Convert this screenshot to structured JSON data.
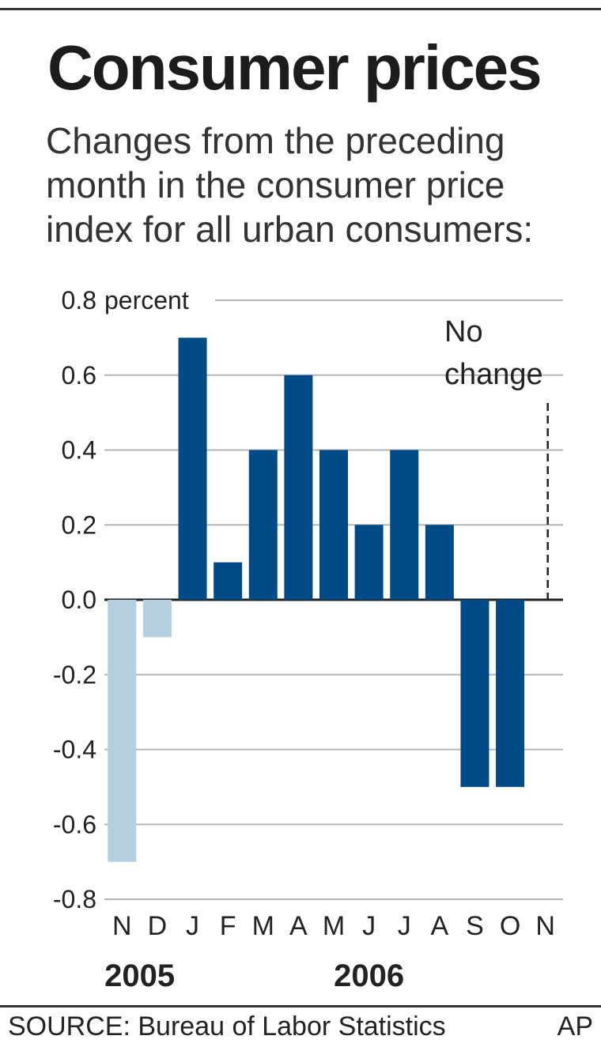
{
  "title": "Consumer prices",
  "subtitle_lines": [
    "Changes from the preceding",
    "month in the consumer price",
    "index for all urban consumers:"
  ],
  "chart_data": {
    "type": "bar",
    "categories": [
      "N",
      "D",
      "J",
      "F",
      "M",
      "A",
      "M",
      "J",
      "J",
      "A",
      "S",
      "O",
      "N"
    ],
    "years": [
      "2005",
      "2005",
      "2006",
      "2006",
      "2006",
      "2006",
      "2006",
      "2006",
      "2006",
      "2006",
      "2006",
      "2006",
      "2006"
    ],
    "values": [
      -0.7,
      -0.1,
      0.7,
      0.1,
      0.4,
      0.6,
      0.4,
      0.2,
      0.4,
      0.2,
      -0.5,
      -0.5,
      0.0
    ],
    "ylim": [
      -0.8,
      0.8
    ],
    "yticks": [
      0.8,
      0.6,
      0.4,
      0.2,
      0.0,
      -0.2,
      -0.4,
      -0.6,
      -0.8
    ],
    "ytick_labels": [
      "0.8",
      "0.6",
      "0.4",
      "0.2",
      "0.0",
      "-0.2",
      "-0.4",
      "-0.6",
      "-0.8"
    ],
    "yunit_label": "percent",
    "year_labels": [
      "2005",
      "2006"
    ],
    "annotation_lines": [
      "No",
      "change"
    ],
    "annotation_category_index": 12,
    "grid": true,
    "colors": {
      "2005": "#b3cfe0",
      "2006": "#004b87",
      "grid": "#b5b5b5",
      "axis": "#222222",
      "text": "#222222"
    }
  },
  "source": "SOURCE: Bureau of Labor Statistics",
  "credit": "AP"
}
